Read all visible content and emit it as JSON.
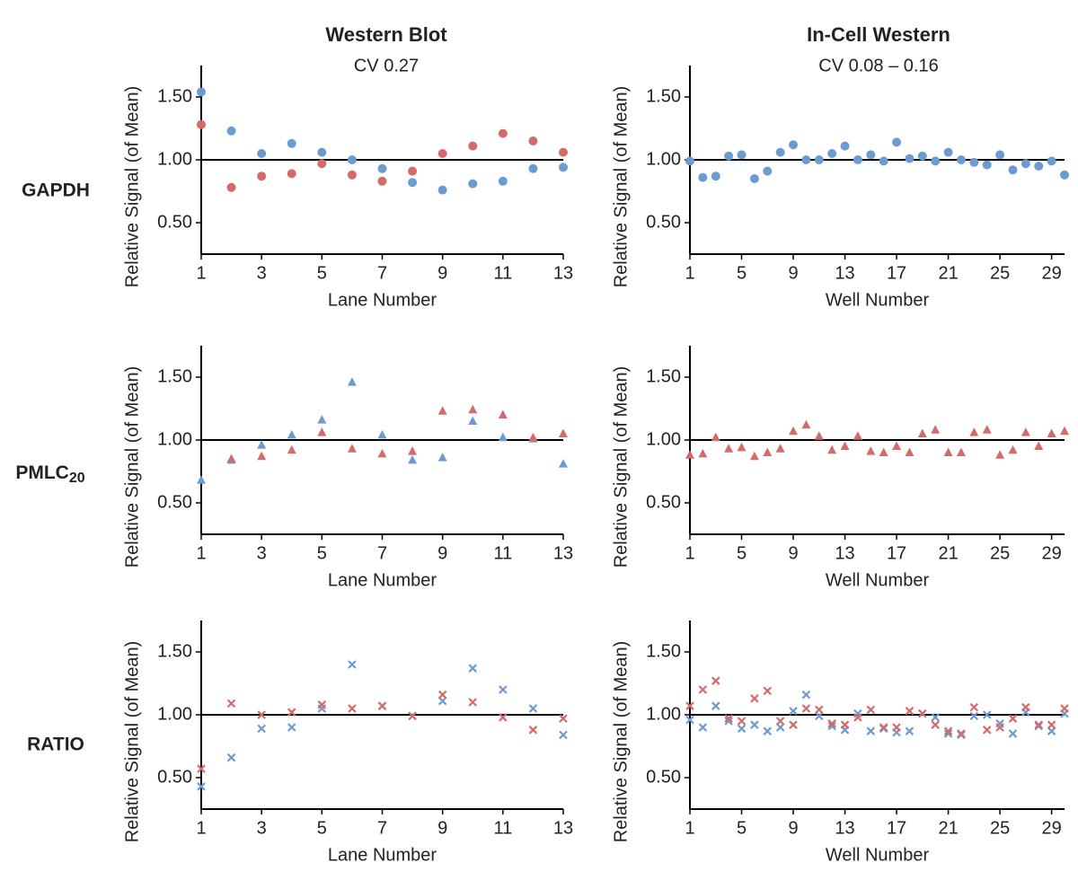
{
  "column_headers": [
    {
      "title": "Western Blot",
      "subtitle": "CV 0.27"
    },
    {
      "title": "In-Cell Western",
      "subtitle": "CV 0.08 – 0.16"
    }
  ],
  "row_labels": [
    {
      "main": "GAPDH"
    },
    {
      "main": "PMLC",
      "sub": "20"
    },
    {
      "main": "RATIO"
    }
  ],
  "chart_data": [
    {
      "type": "scatter",
      "marker": "circle",
      "xlabel": "Lane Number",
      "ylabel": "Relative Signal (of Mean)",
      "x": [
        1,
        2,
        3,
        4,
        5,
        6,
        7,
        8,
        9,
        10,
        11,
        12,
        13
      ],
      "xlim": [
        1,
        13
      ],
      "xticks": [
        1,
        3,
        5,
        7,
        9,
        11,
        13
      ],
      "ylim": [
        0.25,
        1.75
      ],
      "yticks": [
        {
          "value": 0.5,
          "label": "0.50"
        },
        {
          "value": 1,
          "label": "1.00"
        },
        {
          "value": 1.5,
          "label": "1.50"
        }
      ],
      "hline": 1,
      "series": [
        {
          "color": "#6b9bd1",
          "values": [
            1.54,
            1.23,
            1.05,
            1.13,
            1.06,
            1.0,
            0.93,
            0.82,
            0.76,
            0.81,
            0.83,
            0.93,
            0.94
          ]
        },
        {
          "color": "#d46a6a",
          "values": [
            1.28,
            0.78,
            0.87,
            0.89,
            0.97,
            0.88,
            0.83,
            0.91,
            1.05,
            1.11,
            1.21,
            1.15,
            1.06
          ]
        }
      ]
    },
    {
      "type": "scatter",
      "marker": "circle",
      "xlabel": "Well Number",
      "ylabel": "Relative Signal (of Mean)",
      "x": [
        1,
        2,
        3,
        4,
        5,
        6,
        7,
        8,
        9,
        10,
        11,
        12,
        13,
        14,
        15,
        16,
        17,
        18,
        19,
        20,
        21,
        22,
        23,
        24,
        25,
        26,
        27,
        28,
        29,
        30
      ],
      "xlim": [
        1,
        30
      ],
      "xticks": [
        1,
        5,
        9,
        13,
        17,
        21,
        25,
        29
      ],
      "ylim": [
        0.25,
        1.75
      ],
      "yticks": [
        {
          "value": 0.5,
          "label": "0.50"
        },
        {
          "value": 1,
          "label": "1.00"
        },
        {
          "value": 1.5,
          "label": "1.50"
        }
      ],
      "hline": 1,
      "series": [
        {
          "color": "#6b9bd1",
          "values": [
            0.99,
            0.86,
            0.87,
            1.03,
            1.04,
            0.85,
            0.91,
            1.06,
            1.12,
            1.0,
            1.0,
            1.05,
            1.11,
            1.0,
            1.04,
            0.99,
            1.14,
            1.01,
            1.03,
            0.99,
            1.06,
            1.0,
            0.98,
            0.96,
            1.04,
            0.92,
            0.97,
            0.95,
            0.99,
            0.88
          ]
        }
      ]
    },
    {
      "type": "scatter",
      "marker": "triangle",
      "xlabel": "Lane Number",
      "ylabel": "Relative Signal (of Mean)",
      "x": [
        1,
        2,
        3,
        4,
        5,
        6,
        7,
        8,
        9,
        10,
        11,
        12,
        13
      ],
      "xlim": [
        1,
        13
      ],
      "xticks": [
        1,
        3,
        5,
        7,
        9,
        11,
        13
      ],
      "ylim": [
        0.25,
        1.75
      ],
      "yticks": [
        {
          "value": 0.5,
          "label": "0.50"
        },
        {
          "value": 1,
          "label": "1.00"
        },
        {
          "value": 1.5,
          "label": "1.50"
        }
      ],
      "hline": 1,
      "series": [
        {
          "color": "#6b9bd1",
          "values": [
            0.68,
            0.84,
            0.96,
            1.04,
            1.16,
            1.46,
            1.04,
            0.84,
            0.86,
            1.15,
            1.02,
            1.01,
            0.81
          ]
        },
        {
          "color": "#d46a6a",
          "values": [
            null,
            0.85,
            0.87,
            0.92,
            1.06,
            0.93,
            0.89,
            0.91,
            1.23,
            1.24,
            1.2,
            1.02,
            1.05
          ]
        }
      ]
    },
    {
      "type": "scatter",
      "marker": "triangle",
      "xlabel": "Well Number",
      "ylabel": "Relative Signal (of Mean)",
      "x": [
        1,
        2,
        3,
        4,
        5,
        6,
        7,
        8,
        9,
        10,
        11,
        12,
        13,
        14,
        15,
        16,
        17,
        18,
        19,
        20,
        21,
        22,
        23,
        24,
        25,
        26,
        27,
        28,
        29,
        30
      ],
      "xlim": [
        1,
        30
      ],
      "xticks": [
        1,
        5,
        9,
        13,
        17,
        21,
        25,
        29
      ],
      "ylim": [
        0.25,
        1.75
      ],
      "yticks": [
        {
          "value": 0.5,
          "label": "0.50"
        },
        {
          "value": 1,
          "label": "1.00"
        },
        {
          "value": 1.5,
          "label": "1.50"
        }
      ],
      "hline": 1,
      "series": [
        {
          "color": "#d46a6a",
          "values": [
            0.88,
            0.89,
            1.02,
            0.93,
            0.94,
            0.87,
            0.9,
            0.93,
            1.07,
            1.12,
            1.03,
            0.92,
            0.95,
            1.03,
            0.91,
            0.9,
            0.95,
            0.9,
            1.05,
            1.08,
            0.9,
            0.9,
            1.06,
            1.08,
            0.88,
            0.92,
            1.06,
            0.95,
            1.05,
            1.07
          ]
        }
      ]
    },
    {
      "type": "scatter",
      "marker": "cross",
      "xlabel": "Lane Number",
      "ylabel": "Relative Signal (of Mean)",
      "x": [
        1,
        2,
        3,
        4,
        5,
        6,
        7,
        8,
        9,
        10,
        11,
        12,
        13
      ],
      "xlim": [
        1,
        13
      ],
      "xticks": [
        1,
        3,
        5,
        7,
        9,
        11,
        13
      ],
      "ylim": [
        0.25,
        1.75
      ],
      "yticks": [
        {
          "value": 0.5,
          "label": "0.50"
        },
        {
          "value": 1,
          "label": "1.00"
        },
        {
          "value": 1.5,
          "label": "1.50"
        }
      ],
      "hline": 1,
      "series": [
        {
          "color": "#6b9bd1",
          "values": [
            0.43,
            0.66,
            0.89,
            0.9,
            1.05,
            1.4,
            1.07,
            0.99,
            1.11,
            1.37,
            1.2,
            1.05,
            0.84
          ]
        },
        {
          "color": "#d46a6a",
          "values": [
            0.57,
            1.09,
            1.0,
            1.02,
            1.08,
            1.05,
            1.07,
            0.99,
            1.16,
            1.1,
            0.98,
            0.88,
            0.97
          ]
        }
      ]
    },
    {
      "type": "scatter",
      "marker": "cross",
      "xlabel": "Well Number",
      "ylabel": "Relative Signal (of Mean)",
      "x": [
        1,
        2,
        3,
        4,
        5,
        6,
        7,
        8,
        9,
        10,
        11,
        12,
        13,
        14,
        15,
        16,
        17,
        18,
        19,
        20,
        21,
        22,
        23,
        24,
        25,
        26,
        27,
        28,
        29,
        30
      ],
      "xlim": [
        1,
        30
      ],
      "xticks": [
        1,
        5,
        9,
        13,
        17,
        21,
        25,
        29
      ],
      "ylim": [
        0.25,
        1.75
      ],
      "yticks": [
        {
          "value": 0.5,
          "label": "0.50"
        },
        {
          "value": 1,
          "label": "1.00"
        },
        {
          "value": 1.5,
          "label": "1.50"
        }
      ],
      "hline": 1,
      "series": [
        {
          "color": "#6b9bd1",
          "values": [
            0.96,
            0.9,
            1.07,
            0.95,
            0.89,
            0.92,
            0.87,
            0.9,
            1.03,
            1.16,
            0.99,
            0.91,
            0.88,
            1.01,
            0.87,
            0.89,
            0.86,
            0.87,
            1.01,
            0.98,
            0.85,
            0.84,
            0.99,
            1.0,
            0.93,
            0.85,
            1.02,
            0.91,
            0.87,
            1.01
          ]
        },
        {
          "color": "#d46a6a",
          "values": [
            1.07,
            1.2,
            1.27,
            0.97,
            0.95,
            1.13,
            1.19,
            0.95,
            0.92,
            1.05,
            1.04,
            0.93,
            0.92,
            0.98,
            1.04,
            0.9,
            0.9,
            1.03,
            1.01,
            0.92,
            0.87,
            0.85,
            1.06,
            0.88,
            0.9,
            0.97,
            1.06,
            0.92,
            0.92,
            1.05
          ]
        }
      ]
    }
  ]
}
